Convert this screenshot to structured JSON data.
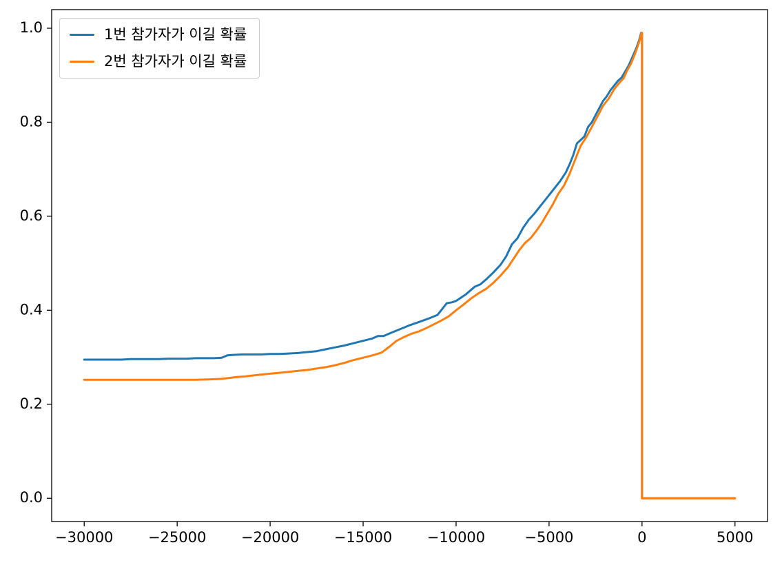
{
  "chart_data": {
    "type": "line",
    "title": "",
    "xlabel": "",
    "ylabel": "",
    "grid": false,
    "legend_position": "upper-left",
    "xlim": [
      -31750,
      6750
    ],
    "ylim": [
      -0.0495,
      1.0395
    ],
    "x_ticks": [
      -30000,
      -25000,
      -20000,
      -15000,
      -10000,
      -5000,
      0,
      5000
    ],
    "x_tick_labels": [
      "−30000",
      "−25000",
      "−20000",
      "−15000",
      "−10000",
      "−5000",
      "0",
      "5000"
    ],
    "y_ticks": [
      0.0,
      0.2,
      0.4,
      0.6,
      0.8,
      1.0
    ],
    "y_tick_labels": [
      "0.0",
      "0.2",
      "0.4",
      "0.6",
      "0.8",
      "1.0"
    ],
    "series": [
      {
        "name": "1번 참가자가 이길 확률",
        "color": "#1f77b4",
        "points": [
          [
            -30000,
            0.295
          ],
          [
            -29500,
            0.295
          ],
          [
            -29000,
            0.295
          ],
          [
            -28500,
            0.295
          ],
          [
            -28000,
            0.295
          ],
          [
            -27500,
            0.296
          ],
          [
            -27000,
            0.296
          ],
          [
            -26500,
            0.296
          ],
          [
            -26000,
            0.296
          ],
          [
            -25500,
            0.297
          ],
          [
            -25000,
            0.297
          ],
          [
            -24500,
            0.297
          ],
          [
            -24000,
            0.298
          ],
          [
            -23500,
            0.298
          ],
          [
            -23000,
            0.298
          ],
          [
            -22600,
            0.299
          ],
          [
            -22300,
            0.304
          ],
          [
            -22000,
            0.305
          ],
          [
            -21500,
            0.306
          ],
          [
            -21000,
            0.306
          ],
          [
            -20500,
            0.306
          ],
          [
            -20000,
            0.307
          ],
          [
            -19500,
            0.307
          ],
          [
            -19000,
            0.308
          ],
          [
            -18500,
            0.309
          ],
          [
            -18000,
            0.311
          ],
          [
            -17500,
            0.313
          ],
          [
            -17000,
            0.317
          ],
          [
            -16500,
            0.321
          ],
          [
            -16000,
            0.325
          ],
          [
            -15500,
            0.33
          ],
          [
            -15000,
            0.335
          ],
          [
            -14500,
            0.34
          ],
          [
            -14200,
            0.345
          ],
          [
            -13900,
            0.345
          ],
          [
            -13500,
            0.352
          ],
          [
            -13000,
            0.36
          ],
          [
            -12500,
            0.368
          ],
          [
            -12000,
            0.375
          ],
          [
            -11500,
            0.382
          ],
          [
            -11000,
            0.39
          ],
          [
            -10800,
            0.4
          ],
          [
            -10500,
            0.415
          ],
          [
            -10200,
            0.417
          ],
          [
            -10000,
            0.42
          ],
          [
            -9500,
            0.433
          ],
          [
            -9000,
            0.45
          ],
          [
            -8700,
            0.455
          ],
          [
            -8400,
            0.465
          ],
          [
            -8000,
            0.48
          ],
          [
            -7600,
            0.497
          ],
          [
            -7300,
            0.515
          ],
          [
            -7000,
            0.54
          ],
          [
            -6700,
            0.553
          ],
          [
            -6400,
            0.575
          ],
          [
            -6100,
            0.592
          ],
          [
            -5800,
            0.605
          ],
          [
            -5500,
            0.62
          ],
          [
            -5200,
            0.635
          ],
          [
            -5000,
            0.645
          ],
          [
            -4700,
            0.66
          ],
          [
            -4400,
            0.675
          ],
          [
            -4100,
            0.693
          ],
          [
            -3900,
            0.71
          ],
          [
            -3700,
            0.73
          ],
          [
            -3500,
            0.755
          ],
          [
            -3300,
            0.762
          ],
          [
            -3100,
            0.77
          ],
          [
            -2900,
            0.79
          ],
          [
            -2700,
            0.8
          ],
          [
            -2500,
            0.815
          ],
          [
            -2300,
            0.83
          ],
          [
            -2100,
            0.845
          ],
          [
            -1900,
            0.855
          ],
          [
            -1700,
            0.868
          ],
          [
            -1500,
            0.878
          ],
          [
            -1300,
            0.888
          ],
          [
            -1100,
            0.895
          ],
          [
            -900,
            0.908
          ],
          [
            -700,
            0.922
          ],
          [
            -500,
            0.94
          ],
          [
            -300,
            0.958
          ],
          [
            -150,
            0.975
          ],
          [
            -50,
            0.99
          ],
          [
            0,
            0.99
          ],
          [
            0,
            0.0
          ],
          [
            5000,
            0.0
          ]
        ]
      },
      {
        "name": "2번 참가자가 이길 확률",
        "color": "#ff7f0e",
        "points": [
          [
            -30000,
            0.252
          ],
          [
            -29000,
            0.252
          ],
          [
            -28000,
            0.252
          ],
          [
            -27000,
            0.252
          ],
          [
            -26000,
            0.252
          ],
          [
            -25000,
            0.252
          ],
          [
            -24000,
            0.252
          ],
          [
            -23200,
            0.253
          ],
          [
            -22600,
            0.254
          ],
          [
            -22200,
            0.256
          ],
          [
            -21800,
            0.258
          ],
          [
            -21400,
            0.259
          ],
          [
            -21000,
            0.261
          ],
          [
            -20500,
            0.263
          ],
          [
            -20000,
            0.265
          ],
          [
            -19500,
            0.267
          ],
          [
            -19000,
            0.269
          ],
          [
            -18500,
            0.271
          ],
          [
            -18000,
            0.273
          ],
          [
            -17500,
            0.276
          ],
          [
            -17000,
            0.279
          ],
          [
            -16500,
            0.283
          ],
          [
            -16000,
            0.288
          ],
          [
            -15600,
            0.293
          ],
          [
            -15200,
            0.297
          ],
          [
            -14800,
            0.301
          ],
          [
            -14400,
            0.305
          ],
          [
            -14000,
            0.31
          ],
          [
            -13600,
            0.322
          ],
          [
            -13200,
            0.335
          ],
          [
            -12800,
            0.343
          ],
          [
            -12400,
            0.35
          ],
          [
            -12000,
            0.355
          ],
          [
            -11600,
            0.362
          ],
          [
            -11200,
            0.37
          ],
          [
            -10800,
            0.378
          ],
          [
            -10400,
            0.387
          ],
          [
            -10000,
            0.4
          ],
          [
            -9600,
            0.412
          ],
          [
            -9200,
            0.425
          ],
          [
            -8800,
            0.436
          ],
          [
            -8400,
            0.445
          ],
          [
            -8000,
            0.458
          ],
          [
            -7600,
            0.474
          ],
          [
            -7200,
            0.492
          ],
          [
            -6900,
            0.51
          ],
          [
            -6600,
            0.528
          ],
          [
            -6300,
            0.543
          ],
          [
            -6000,
            0.553
          ],
          [
            -5700,
            0.568
          ],
          [
            -5400,
            0.585
          ],
          [
            -5100,
            0.605
          ],
          [
            -4800,
            0.625
          ],
          [
            -4500,
            0.648
          ],
          [
            -4200,
            0.665
          ],
          [
            -3900,
            0.69
          ],
          [
            -3600,
            0.72
          ],
          [
            -3300,
            0.75
          ],
          [
            -3000,
            0.768
          ],
          [
            -2700,
            0.79
          ],
          [
            -2400,
            0.812
          ],
          [
            -2100,
            0.835
          ],
          [
            -1800,
            0.85
          ],
          [
            -1500,
            0.87
          ],
          [
            -1200,
            0.885
          ],
          [
            -1000,
            0.893
          ],
          [
            -800,
            0.91
          ],
          [
            -600,
            0.924
          ],
          [
            -400,
            0.943
          ],
          [
            -200,
            0.965
          ],
          [
            -100,
            0.978
          ],
          [
            -30,
            0.99
          ],
          [
            0,
            0.99
          ],
          [
            0,
            0.0
          ],
          [
            5000,
            0.0
          ]
        ]
      }
    ]
  }
}
